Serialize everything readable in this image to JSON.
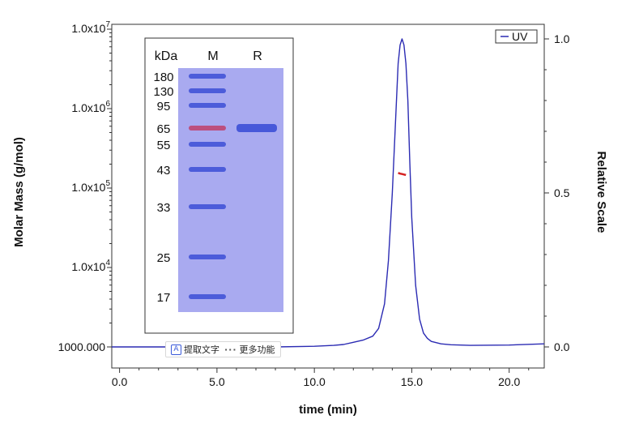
{
  "chart_data": {
    "type": "line",
    "title": "",
    "xlabel": "time (min)",
    "ylabel_left": "Molar Mass (g/mol)",
    "ylabel_right": "Relative Scale",
    "xlim": [
      -0.4,
      21.8
    ],
    "xticks": [
      0.0,
      5.0,
      10.0,
      15.0,
      20.0
    ],
    "xtick_labels": [
      "0.0",
      "5.0",
      "10.0",
      "15.0",
      "20.0"
    ],
    "left_axis": {
      "scale": "log",
      "ylim": [
        1000,
        10000000
      ],
      "ticks": [
        {
          "value": 1000,
          "label": "1000.000"
        },
        {
          "value": 10000,
          "label": "1.0x10",
          "exp": "4"
        },
        {
          "value": 100000,
          "label": "1.0x10",
          "exp": "5"
        },
        {
          "value": 1000000,
          "label": "1.0x10",
          "exp": "6"
        },
        {
          "value": 10000000,
          "label": "1.0x10",
          "exp": "7"
        }
      ]
    },
    "right_axis": {
      "ylim": [
        -0.01,
        1.02
      ],
      "ticks": [
        0.0,
        0.5,
        1.0
      ],
      "tick_labels": [
        "0.0",
        "0.5",
        "1.0"
      ]
    },
    "legend": {
      "position": "top-right",
      "entries": [
        "UV"
      ]
    },
    "grid": false,
    "series": [
      {
        "name": "UV",
        "axis": "right",
        "color": "#2b2bb3",
        "x": [
          -0.4,
          2,
          4,
          6,
          8,
          10,
          11,
          11.5,
          12,
          12.5,
          13,
          13.3,
          13.6,
          13.8,
          14.0,
          14.2,
          14.3,
          14.4,
          14.5,
          14.6,
          14.7,
          14.8,
          14.9,
          15.0,
          15.2,
          15.4,
          15.6,
          15.8,
          16.0,
          16.5,
          17,
          18,
          20,
          21.8
        ],
        "y": [
          0.0,
          0.0,
          0.0,
          0.0,
          0.0,
          0.002,
          0.005,
          0.008,
          0.015,
          0.022,
          0.035,
          0.06,
          0.14,
          0.28,
          0.5,
          0.78,
          0.92,
          0.98,
          1.0,
          0.98,
          0.92,
          0.8,
          0.6,
          0.42,
          0.2,
          0.09,
          0.045,
          0.028,
          0.018,
          0.01,
          0.007,
          0.005,
          0.006,
          0.01
        ]
      },
      {
        "name": "Molar Mass",
        "axis": "left",
        "color": "#d42020",
        "x": [
          14.3,
          14.4,
          14.5,
          14.6,
          14.7
        ],
        "y": [
          155000,
          152000,
          150000,
          148000,
          146000
        ]
      }
    ]
  },
  "gel_inset": {
    "headers": {
      "kda": "kDa",
      "marker": "M",
      "sample": "R"
    },
    "marker_labels": [
      "180",
      "130",
      "95",
      "65",
      "55",
      "43",
      "33",
      "25",
      "17"
    ],
    "band_color": "#3c4fd6",
    "highlight_band_color": "#c0406a",
    "gel_background": "#a9aaf0",
    "sample_band": "65"
  },
  "toolbar": {
    "extract_text_label": "提取文字",
    "more_label": "更多功能"
  }
}
